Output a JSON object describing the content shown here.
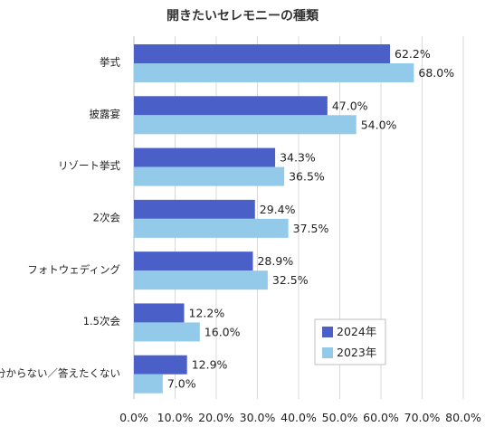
{
  "chart_data": {
    "type": "bar",
    "orientation": "horizontal",
    "title": "開きたいセレモニーの種類",
    "categories": [
      "挙式",
      "披露宴",
      "リゾート挙式",
      "2次会",
      "フォトウェディング",
      "1.5次会",
      "分からない／答えたくない"
    ],
    "series": [
      {
        "name": "2024年",
        "color": "#4a60c8",
        "values": [
          62.2,
          47.0,
          34.3,
          29.4,
          28.9,
          12.2,
          12.9
        ]
      },
      {
        "name": "2023年",
        "color": "#93caea",
        "values": [
          68.0,
          54.0,
          36.5,
          37.5,
          32.5,
          16.0,
          7.0
        ]
      }
    ],
    "data_labels": [
      [
        "62.2%",
        "47.0%",
        "34.3%",
        "29.4%",
        "28.9%",
        "12.2%",
        "12.9%"
      ],
      [
        "68.0%",
        "54.0%",
        "36.5%",
        "37.5%",
        "32.5%",
        "16.0%",
        "7.0%"
      ]
    ],
    "xlim": [
      0,
      80
    ],
    "xticks": [
      0,
      10,
      20,
      30,
      40,
      50,
      60,
      70,
      80
    ],
    "xtick_labels": [
      "0.0%",
      "10.0%",
      "20.0%",
      "30.0%",
      "40.0%",
      "50.0%",
      "60.0%",
      "70.0%",
      "80.0%"
    ],
    "grid": true,
    "legend_position": "bottom-right"
  }
}
